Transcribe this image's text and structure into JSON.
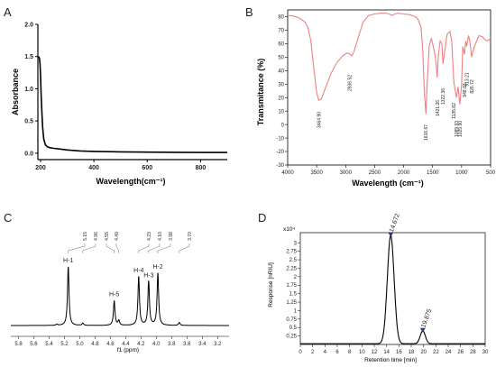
{
  "chart_data": [
    {
      "panel_label": "A",
      "type": "line",
      "title": "",
      "xlabel": "Wavelength(cm⁻¹)",
      "ylabel": "Absorbance",
      "xlim": [
        190,
        900
      ],
      "ylim": [
        -0.1,
        2.0
      ],
      "xticks": [
        200,
        400,
        600,
        800
      ],
      "yticks": [
        0.0,
        0.5,
        1.0,
        1.5,
        2.0
      ],
      "ytick_labels": [
        "0.0",
        "0.5",
        "1.0",
        "1.5",
        "2.0"
      ],
      "line_color": "#000000",
      "series": [
        {
          "x": [
            192,
            194,
            196,
            198,
            200,
            202,
            205,
            208,
            212,
            218,
            225,
            235,
            250,
            270,
            300,
            350,
            400,
            500,
            600,
            700,
            800,
            900
          ],
          "y": [
            1.5,
            1.49,
            1.47,
            1.38,
            1.2,
            0.95,
            0.65,
            0.4,
            0.22,
            0.13,
            0.1,
            0.085,
            0.075,
            0.065,
            0.05,
            0.035,
            0.028,
            0.02,
            0.016,
            0.013,
            0.011,
            0.01
          ]
        }
      ]
    },
    {
      "panel_label": "B",
      "type": "line",
      "title": "",
      "xlabel": "Wavelength (cm⁻¹)",
      "ylabel": "Transmitance (%)",
      "xlim": [
        4000,
        500
      ],
      "ylim": [
        -30,
        85
      ],
      "xticks": [
        4000,
        3500,
        3000,
        2500,
        2000,
        1500,
        1000,
        500
      ],
      "yticks": [
        -30,
        -20,
        -10,
        0,
        10,
        20,
        30,
        40,
        50,
        60,
        70,
        80
      ],
      "line_color": "#f08080",
      "series": [
        {
          "x": [
            4000,
            3900,
            3800,
            3700,
            3650,
            3600,
            3550,
            3500,
            3465,
            3420,
            3350,
            3250,
            3150,
            3050,
            2980,
            2937,
            2890,
            2850,
            2800,
            2700,
            2600,
            2500,
            2400,
            2300,
            2250,
            2200,
            2150,
            2100,
            2000,
            1900,
            1800,
            1750,
            1700,
            1670,
            1640,
            1616,
            1595,
            1560,
            1520,
            1500,
            1460,
            1440,
            1421,
            1400,
            1370,
            1340,
            1322,
            1290,
            1250,
            1200,
            1170,
            1135,
            1110,
            1089,
            1060,
            1030,
            1000,
            980,
            949,
            930,
            913,
            880,
            860,
            827,
            800,
            760,
            700,
            640,
            600,
            560,
            520,
            500
          ],
          "y": [
            81,
            80.5,
            79,
            76,
            72,
            62,
            42,
            24,
            18,
            19,
            27,
            38,
            46,
            51,
            53,
            52.5,
            51,
            55,
            62,
            76,
            81,
            82,
            82.5,
            82.5,
            82,
            81,
            82,
            82.5,
            82,
            81.5,
            80,
            78,
            72,
            55,
            22,
            8,
            30,
            58,
            64,
            60,
            52,
            45,
            35,
            52,
            62,
            60,
            45,
            55,
            67,
            69,
            62,
            32,
            25,
            20,
            28,
            15,
            30,
            58,
            52,
            62,
            58,
            66,
            62,
            50,
            55,
            60,
            66,
            65,
            63,
            62,
            63,
            64
          ]
        }
      ],
      "annotations": [
        "3464.90",
        "2936.52",
        "1616.67",
        "1421.26",
        "1322.36",
        "1135.82",
        "1089.93",
        "1029.90",
        "948.83",
        "913.21",
        "826.72"
      ]
    },
    {
      "panel_label": "C",
      "type": "line",
      "title": "",
      "xlabel": "f1 (ppm)",
      "ylabel": "",
      "xlim": [
        5.9,
        3.05
      ],
      "xticks": [
        5.8,
        5.6,
        5.4,
        5.2,
        5.0,
        4.8,
        4.6,
        4.4,
        4.2,
        4.0,
        3.8,
        3.6,
        3.4,
        3.2
      ],
      "xtick_labels": [
        "5.8",
        "5.6",
        "5.4",
        "5.2",
        "5.0",
        "4.8",
        "4.6",
        "4.4",
        "4.2",
        "4.0",
        "3.8",
        "3.6",
        "3.4",
        "3.2"
      ],
      "line_color": "#000000",
      "peaks": [
        {
          "ppm": 5.15,
          "height": 1.0,
          "label": "H-1"
        },
        {
          "ppm": 4.55,
          "height": 0.42,
          "label": "H-5"
        },
        {
          "ppm": 4.23,
          "height": 0.83,
          "label": "H-4"
        },
        {
          "ppm": 4.1,
          "height": 0.75,
          "label": "H-3"
        },
        {
          "ppm": 3.98,
          "height": 0.89,
          "label": "H-2"
        },
        {
          "ppm": 4.96,
          "height": 0.04,
          "label": ""
        },
        {
          "ppm": 4.49,
          "height": 0.08,
          "label": ""
        },
        {
          "ppm": 3.7,
          "height": 0.05,
          "label": ""
        },
        {
          "ppm": 5.3,
          "height": 0.02,
          "label": ""
        }
      ],
      "peak_labels": [
        "5.15",
        "4.96",
        "4.55",
        "4.49",
        "4.23",
        "4.10",
        "3.98",
        "3.70"
      ]
    },
    {
      "panel_label": "D",
      "type": "line",
      "title": "",
      "xlabel": "Retention time [min]",
      "ylabel": "Response [nRIU]",
      "axis_multiplier": "x10⁴",
      "xlim": [
        0,
        30
      ],
      "ylim": [
        0,
        3.3
      ],
      "xticks": [
        0,
        2,
        4,
        6,
        8,
        10,
        12,
        14,
        16,
        18,
        20,
        22,
        24,
        26,
        28,
        30
      ],
      "yticks": [
        0.25,
        0.5,
        0.75,
        1,
        1.25,
        1.5,
        1.75,
        2,
        2.25,
        2.5,
        2.75,
        3
      ],
      "ytick_labels": [
        "0.25",
        "0.5",
        "0.75",
        "1",
        "1.25",
        "1.5",
        "1.75",
        "2",
        "2.25",
        "2.5",
        "2.75",
        "3"
      ],
      "line_color": "#000000",
      "peaks": [
        {
          "rt": 14.672,
          "height": 3.2,
          "label": "14.672"
        },
        {
          "rt": 19.875,
          "height": 0.38,
          "label": "19.875"
        }
      ]
    }
  ]
}
